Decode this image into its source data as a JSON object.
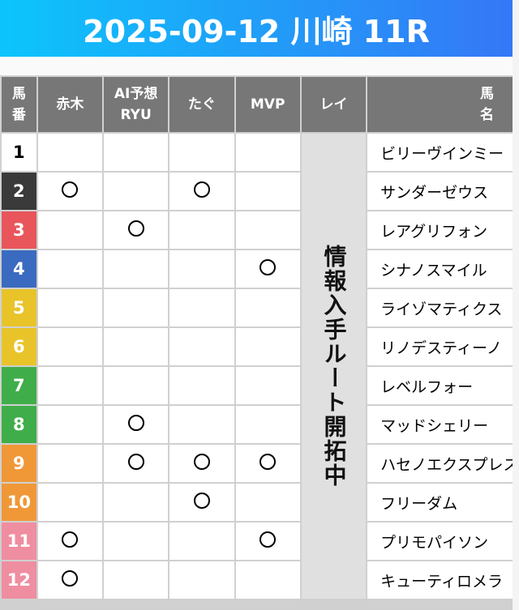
{
  "title": "2025-09-12 川崎 11R",
  "columns": [
    "馬\n番",
    "赤木",
    "AI予想\nRYU",
    "たぐ",
    "MVP",
    "レイ",
    "馬\n名"
  ],
  "column_lines": [
    [
      "馬",
      "番"
    ],
    [
      "赤木"
    ],
    [
      "AI予想",
      "RYU"
    ],
    [
      "たぐ"
    ],
    [
      "MVP"
    ],
    [
      "レイ"
    ],
    [
      "馬",
      "名"
    ]
  ],
  "rei_note": "情報入手ルート開拓中",
  "mark_symbol": "circle",
  "rows": [
    {
      "num": "1",
      "color": "#ffffff",
      "text_color": "#000000",
      "name": "ビリーヴインミー",
      "akagi": false,
      "ai": false,
      "tagu": false,
      "mvp": false
    },
    {
      "num": "2",
      "color": "#3a3a3a",
      "text_color": "#ffffff",
      "name": "サンダーゼウス",
      "akagi": true,
      "ai": false,
      "tagu": true,
      "mvp": false
    },
    {
      "num": "3",
      "color": "#e8565c",
      "text_color": "#ffffff",
      "name": "レアグリフォン",
      "akagi": false,
      "ai": true,
      "tagu": false,
      "mvp": false
    },
    {
      "num": "4",
      "color": "#3b6bc0",
      "text_color": "#ffffff",
      "name": "シナノスマイル",
      "akagi": false,
      "ai": false,
      "tagu": false,
      "mvp": true
    },
    {
      "num": "5",
      "color": "#e8c42a",
      "text_color": "#ffffff",
      "name": "ライゾマティクス",
      "akagi": false,
      "ai": false,
      "tagu": false,
      "mvp": false
    },
    {
      "num": "6",
      "color": "#e8c42a",
      "text_color": "#ffffff",
      "name": "リノデスティーノ",
      "akagi": false,
      "ai": false,
      "tagu": false,
      "mvp": false
    },
    {
      "num": "7",
      "color": "#3fae4a",
      "text_color": "#ffffff",
      "name": "レベルフォー",
      "akagi": false,
      "ai": false,
      "tagu": false,
      "mvp": false
    },
    {
      "num": "8",
      "color": "#3fae4a",
      "text_color": "#ffffff",
      "name": "マッドシェリー",
      "akagi": false,
      "ai": true,
      "tagu": false,
      "mvp": false
    },
    {
      "num": "9",
      "color": "#f09838",
      "text_color": "#ffffff",
      "name": "ハセノエクスプレス",
      "akagi": false,
      "ai": true,
      "tagu": true,
      "mvp": true
    },
    {
      "num": "10",
      "color": "#f09838",
      "text_color": "#ffffff",
      "name": "フリーダム",
      "akagi": false,
      "ai": false,
      "tagu": true,
      "mvp": false
    },
    {
      "num": "11",
      "color": "#ef8ea0",
      "text_color": "#ffffff",
      "name": "プリモパイソン",
      "akagi": true,
      "ai": false,
      "tagu": false,
      "mvp": true
    },
    {
      "num": "12",
      "color": "#ef8ea0",
      "text_color": "#ffffff",
      "name": "キューティロメラ",
      "akagi": true,
      "ai": false,
      "tagu": false,
      "mvp": false
    }
  ]
}
